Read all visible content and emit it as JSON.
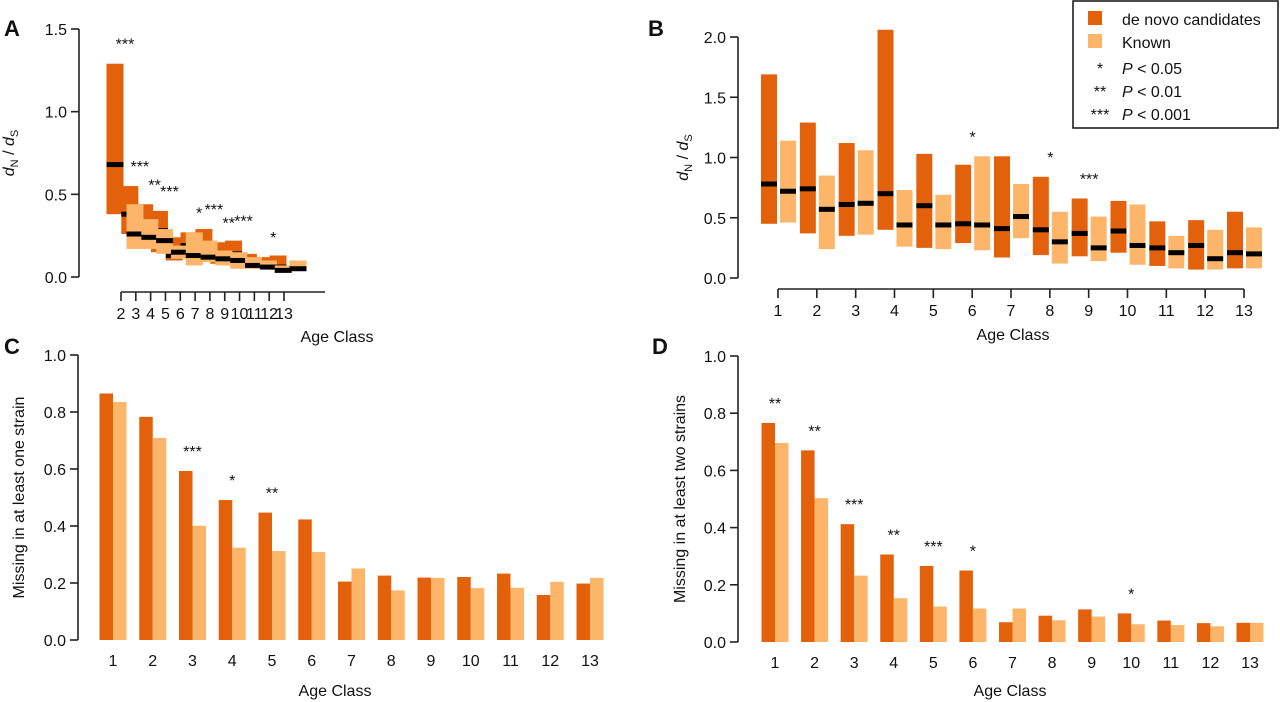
{
  "colors": {
    "denovo": "#E3610A",
    "known": "#FDB56A",
    "median": "#000000"
  },
  "legend": {
    "items": [
      {
        "symbol": "swatch",
        "color_key": "denovo",
        "label": "de novo candidates"
      },
      {
        "symbol": "swatch",
        "color_key": "known",
        "label": "Known"
      },
      {
        "symbol": "*",
        "label": "P < 0.05"
      },
      {
        "symbol": "**",
        "label": "P < 0.01"
      },
      {
        "symbol": "***",
        "label": "P < 0.001"
      }
    ]
  },
  "chart_data": [
    {
      "panel": "A",
      "type": "box-range",
      "ylabel": "dN / dS",
      "xlabel": "Age Class",
      "ylim": [
        0,
        1.5
      ],
      "yticks": [
        "0.0",
        "0.5",
        "1.0",
        "1.5"
      ],
      "categories": [
        "2",
        "3",
        "4",
        "5",
        "6",
        "7",
        "8",
        "9",
        "10",
        "11",
        "12",
        "13"
      ],
      "series": [
        {
          "name": "de novo candidates",
          "low": [
            0.38,
            0.26,
            0.2,
            0.15,
            0.1,
            0.12,
            0.1,
            0.08,
            0.07,
            0.06,
            0.05,
            0.05
          ],
          "median": [
            0.68,
            0.38,
            0.29,
            0.28,
            0.13,
            0.19,
            0.15,
            0.13,
            0.14,
            0.07,
            0.07,
            0.06
          ],
          "high": [
            1.29,
            0.55,
            0.44,
            0.4,
            0.24,
            0.27,
            0.29,
            0.21,
            0.22,
            0.14,
            0.12,
            0.13
          ]
        },
        {
          "name": "Known",
          "low": [
            0.17,
            0.17,
            0.14,
            0.11,
            0.07,
            0.09,
            0.07,
            0.05,
            0.05,
            0.05,
            0.03,
            0.04
          ],
          "median": [
            0.26,
            0.24,
            0.22,
            0.15,
            0.13,
            0.12,
            0.11,
            0.1,
            0.07,
            0.06,
            0.04,
            0.05
          ],
          "high": [
            0.44,
            0.35,
            0.29,
            0.19,
            0.27,
            0.22,
            0.16,
            0.15,
            0.12,
            0.1,
            0.07,
            0.1
          ]
        }
      ],
      "significance": [
        "***",
        "***",
        "**",
        "***",
        "",
        "*",
        "***",
        "**",
        "***",
        "",
        "*",
        ""
      ]
    },
    {
      "panel": "B",
      "type": "box-range",
      "ylabel": "dN / dS",
      "xlabel": "Age Class",
      "ylim": [
        0,
        2.0
      ],
      "yticks": [
        "0.0",
        "0.5",
        "1.0",
        "1.5",
        "2.0"
      ],
      "categories": [
        "1",
        "2",
        "3",
        "4",
        "5",
        "6",
        "7",
        "8",
        "9",
        "10",
        "11",
        "12",
        "13"
      ],
      "series": [
        {
          "name": "de novo candidates",
          "low": [
            0.45,
            0.37,
            0.35,
            0.4,
            0.25,
            0.29,
            0.17,
            0.19,
            0.18,
            0.21,
            0.1,
            0.07,
            0.08
          ],
          "median": [
            0.78,
            0.74,
            0.61,
            0.7,
            0.6,
            0.45,
            0.41,
            0.4,
            0.37,
            0.39,
            0.25,
            0.27,
            0.21
          ],
          "high": [
            1.69,
            1.29,
            1.12,
            2.06,
            1.03,
            0.94,
            1.01,
            0.84,
            0.66,
            0.64,
            0.47,
            0.48,
            0.55
          ]
        },
        {
          "name": "Known",
          "low": [
            0.46,
            0.24,
            0.36,
            0.26,
            0.24,
            0.23,
            0.33,
            0.12,
            0.14,
            0.11,
            0.08,
            0.07,
            0.08
          ],
          "median": [
            0.72,
            0.57,
            0.62,
            0.44,
            0.44,
            0.44,
            0.51,
            0.3,
            0.25,
            0.27,
            0.21,
            0.16,
            0.2
          ],
          "high": [
            1.14,
            0.85,
            1.06,
            0.73,
            0.69,
            1.01,
            0.78,
            0.55,
            0.51,
            0.61,
            0.35,
            0.4,
            0.42
          ]
        }
      ],
      "significance": [
        "",
        "",
        "",
        "",
        "",
        "*",
        "",
        "*",
        "***",
        "",
        "",
        "",
        ""
      ]
    },
    {
      "panel": "C",
      "type": "bar",
      "ylabel": "Missing in at least one  strain",
      "xlabel": "Age Class",
      "ylim": [
        0,
        1.0
      ],
      "yticks": [
        "0.0",
        "0.2",
        "0.4",
        "0.6",
        "0.8",
        "1.0"
      ],
      "categories": [
        "1",
        "2",
        "3",
        "4",
        "5",
        "6",
        "7",
        "8",
        "9",
        "10",
        "11",
        "12",
        "13"
      ],
      "series": [
        {
          "name": "de novo candidates",
          "values": [
            0.865,
            0.783,
            0.593,
            0.491,
            0.447,
            0.423,
            0.205,
            0.226,
            0.219,
            0.221,
            0.233,
            0.158,
            0.198
          ]
        },
        {
          "name": "Known",
          "values": [
            0.835,
            0.709,
            0.401,
            0.324,
            0.312,
            0.309,
            0.251,
            0.174,
            0.218,
            0.182,
            0.183,
            0.204,
            0.218
          ]
        }
      ],
      "significance": [
        "",
        "",
        "***",
        "*",
        "**",
        "",
        "",
        "",
        "",
        "",
        "",
        "",
        ""
      ]
    },
    {
      "panel": "D",
      "type": "bar",
      "ylabel": "Missing in at least two strains",
      "xlabel": "Age Class",
      "ylim": [
        0,
        1.0
      ],
      "yticks": [
        "0.0",
        "0.2",
        "0.4",
        "0.6",
        "0.8",
        "1.0"
      ],
      "categories": [
        "1",
        "2",
        "3",
        "4",
        "5",
        "6",
        "7",
        "8",
        "9",
        "10",
        "11",
        "12",
        "13"
      ],
      "series": [
        {
          "name": "de novo candidates",
          "values": [
            0.766,
            0.67,
            0.412,
            0.306,
            0.266,
            0.25,
            0.069,
            0.092,
            0.114,
            0.1,
            0.075,
            0.066,
            0.067
          ]
        },
        {
          "name": "Known",
          "values": [
            0.696,
            0.503,
            0.232,
            0.153,
            0.124,
            0.117,
            0.117,
            0.076,
            0.089,
            0.062,
            0.059,
            0.055,
            0.067
          ]
        }
      ],
      "significance": [
        "**",
        "**",
        "***",
        "**",
        "***",
        "*",
        "",
        "",
        "",
        "*",
        "",
        "",
        ""
      ]
    }
  ]
}
